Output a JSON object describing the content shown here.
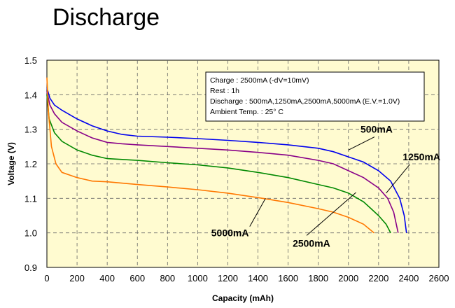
{
  "title": "Discharge",
  "chart_data": {
    "type": "line",
    "title": "Discharge",
    "xlabel": "Capacity (mAh)",
    "ylabel": "Voltage (V)",
    "xlim": [
      0,
      2600
    ],
    "ylim": [
      0.9,
      1.5
    ],
    "xticks": [
      0,
      200,
      400,
      600,
      800,
      1000,
      1200,
      1400,
      1600,
      1800,
      2000,
      2200,
      2400,
      2600
    ],
    "yticks": [
      0.9,
      1.0,
      1.1,
      1.2,
      1.3,
      1.4,
      1.5
    ],
    "grid": true,
    "background": "#fffbd0",
    "info_box": [
      "Charge : 2500mA (-dV=10mV)",
      "Rest : 1h",
      "Discharge :  500mA,1250mA,2500mA,5000mA (E.V.=1.0V)",
      "Ambient Temp. : 25° C"
    ],
    "series": [
      {
        "name": "500mA",
        "color": "#0000ee",
        "points": [
          [
            0,
            1.42
          ],
          [
            20,
            1.39
          ],
          [
            50,
            1.37
          ],
          [
            100,
            1.355
          ],
          [
            200,
            1.33
          ],
          [
            300,
            1.31
          ],
          [
            400,
            1.295
          ],
          [
            500,
            1.285
          ],
          [
            600,
            1.28
          ],
          [
            800,
            1.277
          ],
          [
            1000,
            1.273
          ],
          [
            1200,
            1.268
          ],
          [
            1400,
            1.262
          ],
          [
            1600,
            1.255
          ],
          [
            1800,
            1.245
          ],
          [
            1900,
            1.235
          ],
          [
            2000,
            1.22
          ],
          [
            2100,
            1.205
          ],
          [
            2200,
            1.18
          ],
          [
            2280,
            1.15
          ],
          [
            2340,
            1.1
          ],
          [
            2370,
            1.05
          ],
          [
            2385,
            1.0
          ]
        ]
      },
      {
        "name": "1250mA",
        "color": "#880088",
        "points": [
          [
            0,
            1.41
          ],
          [
            20,
            1.37
          ],
          [
            50,
            1.345
          ],
          [
            100,
            1.32
          ],
          [
            200,
            1.295
          ],
          [
            300,
            1.275
          ],
          [
            400,
            1.262
          ],
          [
            500,
            1.258
          ],
          [
            600,
            1.255
          ],
          [
            800,
            1.25
          ],
          [
            1000,
            1.245
          ],
          [
            1200,
            1.24
          ],
          [
            1400,
            1.233
          ],
          [
            1600,
            1.225
          ],
          [
            1800,
            1.21
          ],
          [
            1900,
            1.2
          ],
          [
            2000,
            1.18
          ],
          [
            2100,
            1.16
          ],
          [
            2200,
            1.13
          ],
          [
            2260,
            1.1
          ],
          [
            2300,
            1.06
          ],
          [
            2330,
            1.0
          ]
        ]
      },
      {
        "name": "2500mA",
        "color": "#008800",
        "points": [
          [
            0,
            1.4
          ],
          [
            15,
            1.33
          ],
          [
            50,
            1.29
          ],
          [
            100,
            1.265
          ],
          [
            200,
            1.24
          ],
          [
            300,
            1.225
          ],
          [
            400,
            1.215
          ],
          [
            600,
            1.21
          ],
          [
            800,
            1.203
          ],
          [
            1000,
            1.197
          ],
          [
            1200,
            1.188
          ],
          [
            1400,
            1.175
          ],
          [
            1600,
            1.16
          ],
          [
            1800,
            1.14
          ],
          [
            1900,
            1.13
          ],
          [
            2000,
            1.115
          ],
          [
            2100,
            1.09
          ],
          [
            2150,
            1.07
          ],
          [
            2200,
            1.05
          ],
          [
            2250,
            1.025
          ],
          [
            2280,
            1.0
          ]
        ]
      },
      {
        "name": "5000mA",
        "color": "#ff7700",
        "points": [
          [
            0,
            1.45
          ],
          [
            10,
            1.35
          ],
          [
            30,
            1.25
          ],
          [
            60,
            1.2
          ],
          [
            100,
            1.175
          ],
          [
            200,
            1.16
          ],
          [
            300,
            1.15
          ],
          [
            400,
            1.148
          ],
          [
            600,
            1.14
          ],
          [
            800,
            1.133
          ],
          [
            1000,
            1.125
          ],
          [
            1200,
            1.115
          ],
          [
            1400,
            1.102
          ],
          [
            1600,
            1.088
          ],
          [
            1800,
            1.07
          ],
          [
            1900,
            1.06
          ],
          [
            2000,
            1.045
          ],
          [
            2100,
            1.025
          ],
          [
            2170,
            1.0
          ]
        ]
      }
    ],
    "labels": [
      {
        "text": "500mA",
        "x": 2080,
        "y": 1.29,
        "target_x": 2000,
        "target_y": 1.24
      },
      {
        "text": "1250mA",
        "x": 2360,
        "y": 1.21,
        "target_x": 2250,
        "target_y": 1.115
      },
      {
        "text": "2500mA",
        "x": 1630,
        "y": 0.96,
        "target_x": 2050,
        "target_y": 1.117
      },
      {
        "text": "5000mA",
        "x": 1090,
        "y": 0.99,
        "target_x": 1450,
        "target_y": 1.1
      }
    ]
  }
}
